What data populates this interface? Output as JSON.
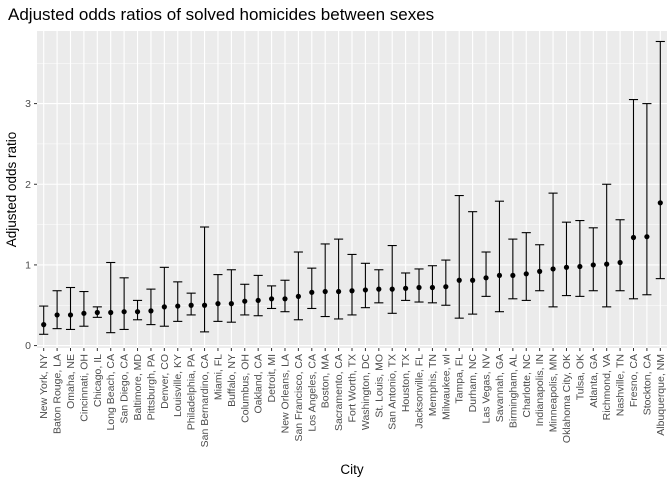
{
  "chart_data": {
    "type": "scatter",
    "subtype": "point-with-errorbars",
    "title": "Adjusted odds ratios of solved homicides between sexes",
    "xlabel": "City",
    "ylabel": "Adjusted odds ratio",
    "ylim": [
      -0.03,
      3.9
    ],
    "yticks": [
      0,
      1,
      2,
      3
    ],
    "grid": true,
    "colors": {
      "panel": "#ebebeb",
      "grid_major": "#ffffff",
      "point": "#000000"
    },
    "categories": [
      "New York, NY",
      "Baton Rouge, LA",
      "Omaha, NE",
      "Cincinnati, OH",
      "Chicago, IL",
      "Long Beach, CA",
      "San Diego, CA",
      "Baltimore, MD",
      "Pittsburgh, PA",
      "Denver, CO",
      "Louisville, KY",
      "Philadelphia, PA",
      "San Bernardino, CA",
      "Miami, FL",
      "Buffalo, NY",
      "Columbus, OH",
      "Oakland, CA",
      "Detroit, MI",
      "New Orleans, LA",
      "San Francisco, CA",
      "Los Angeles, CA",
      "Boston, MA",
      "Sacramento, CA",
      "Fort Worth, TX",
      "Washington, DC",
      "St. Louis, MO",
      "San Antonio, TX",
      "Houston, TX",
      "Jacksonville, FL",
      "Memphis, TN",
      "Milwaukee, wI",
      "Tampa, FL",
      "Durham, NC",
      "Las Vegas, NV",
      "Savannah, GA",
      "Birmingham, AL",
      "Charlotte, NC",
      "Indianapolis, IN",
      "Minneapolis, MN",
      "Oklahoma City, OK",
      "Tulsa, OK",
      "Atlanta, GA",
      "Richmond, VA",
      "Nashville, TN",
      "Fresno, CA",
      "Stockton, CA",
      "Albuquerque, NM"
    ],
    "series": [
      {
        "values": [
          0.26,
          0.38,
          0.38,
          0.4,
          0.41,
          0.41,
          0.42,
          0.42,
          0.43,
          0.48,
          0.49,
          0.5,
          0.5,
          0.52,
          0.52,
          0.55,
          0.56,
          0.58,
          0.58,
          0.61,
          0.66,
          0.67,
          0.67,
          0.68,
          0.69,
          0.7,
          0.7,
          0.71,
          0.72,
          0.72,
          0.73,
          0.81,
          0.81,
          0.84,
          0.87,
          0.87,
          0.89,
          0.92,
          0.95,
          0.97,
          0.98,
          1.0,
          1.01,
          1.03,
          1.34,
          1.35,
          1.77
        ],
        "lower": [
          0.14,
          0.21,
          0.2,
          0.24,
          0.35,
          0.16,
          0.2,
          0.32,
          0.26,
          0.24,
          0.3,
          0.38,
          0.17,
          0.3,
          0.29,
          0.38,
          0.37,
          0.46,
          0.42,
          0.32,
          0.46,
          0.36,
          0.33,
          0.38,
          0.47,
          0.53,
          0.4,
          0.56,
          0.54,
          0.53,
          0.5,
          0.34,
          0.39,
          0.61,
          0.42,
          0.58,
          0.56,
          0.68,
          0.48,
          0.62,
          0.61,
          0.68,
          0.48,
          0.68,
          0.58,
          0.63,
          0.83
        ],
        "upper": [
          0.49,
          0.68,
          0.72,
          0.67,
          0.48,
          1.03,
          0.84,
          0.56,
          0.7,
          0.97,
          0.79,
          0.65,
          1.47,
          0.88,
          0.94,
          0.76,
          0.87,
          0.74,
          0.81,
          1.16,
          0.96,
          1.26,
          1.32,
          1.13,
          1.02,
          0.94,
          1.24,
          0.9,
          0.95,
          0.99,
          1.06,
          1.86,
          1.66,
          1.16,
          1.79,
          1.32,
          1.4,
          1.25,
          1.89,
          1.53,
          1.55,
          1.46,
          2.0,
          1.56,
          3.05,
          3.0,
          3.77
        ]
      }
    ]
  }
}
